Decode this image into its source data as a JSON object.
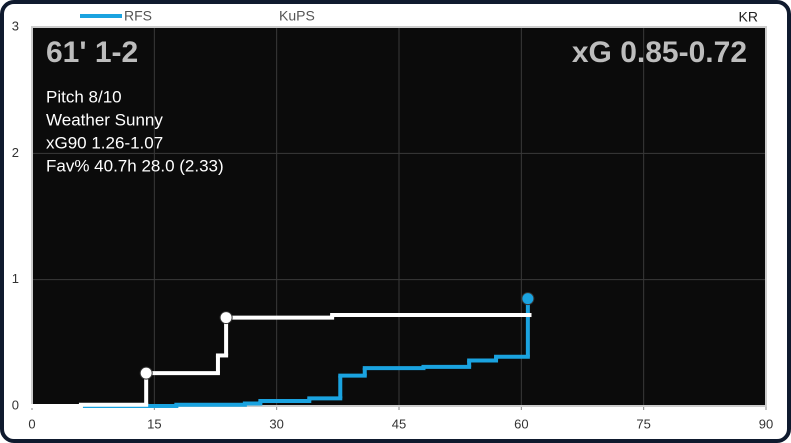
{
  "chart_data": {
    "type": "step",
    "title": "61' 1-2",
    "subtitle": "xG 0.85-0.72",
    "annotations": [
      "Pitch  8/10",
      "Weather Sunny",
      "xG90 1.26-1.07",
      "Fav% 40.7h 28.0 (2.33)"
    ],
    "corner_label": "KR",
    "series": [
      {
        "name": "RFS",
        "color": "#1aa3e0",
        "x": [
          0,
          14.3,
          17.7,
          26.1,
          28,
          34,
          37.8,
          40.8,
          48,
          53.6,
          56.9,
          60.8
        ],
        "values": [
          0,
          0,
          0.01,
          0.02,
          0.04,
          0.06,
          0.24,
          0.3,
          0.31,
          0.36,
          0.39,
          0.85
        ],
        "markers": [
          11
        ]
      },
      {
        "name": "KuPS",
        "color": "#ffffff",
        "x": [
          0,
          6,
          14,
          22.8,
          23.8,
          36.8,
          61
        ],
        "values": [
          0,
          0.01,
          0.26,
          0.4,
          0.7,
          0.72,
          0.72
        ],
        "markers": [
          2,
          4
        ]
      }
    ],
    "xlim": [
      0,
      90
    ],
    "xticks": [
      0,
      15,
      30,
      45,
      60,
      75,
      90
    ],
    "ylim": [
      0,
      3
    ],
    "yticks": [
      0,
      1,
      2,
      3
    ],
    "grid": true,
    "background": "#0b0b0b"
  }
}
